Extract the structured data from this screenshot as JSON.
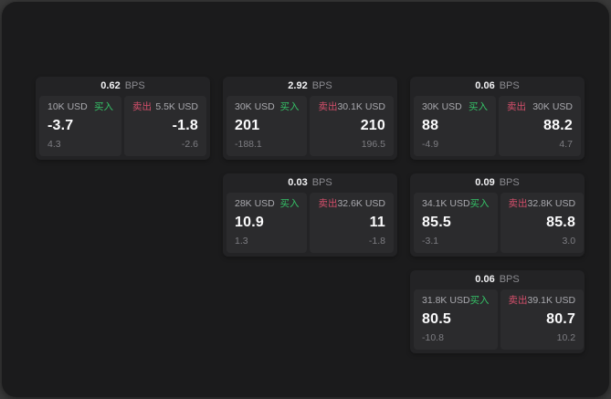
{
  "labels": {
    "bps_unit": "BPS",
    "buy": "买入",
    "sell": "卖出"
  },
  "colors": {
    "outer_background": "#3a3a3a",
    "surface_background": "#1b1b1c",
    "card_background": "#232325",
    "panel_background": "#2b2b2d",
    "buy_green": "#35c267",
    "sell_red": "#d44f6b",
    "primary_text": "#fbfbfc",
    "secondary_text": "#a9a9ae",
    "muted_text": "#7d7d82"
  },
  "cards": [
    {
      "row": 1,
      "col": 1,
      "bps": "0.62",
      "buy": {
        "notional": "10K USD",
        "price": "-3.7",
        "delta": "4.3"
      },
      "sell": {
        "notional": "5.5K USD",
        "price": "-1.8",
        "delta": "-2.6"
      }
    },
    {
      "row": 1,
      "col": 2,
      "bps": "2.92",
      "buy": {
        "notional": "30K USD",
        "price": "201",
        "delta": "-188.1"
      },
      "sell": {
        "notional": "30.1K USD",
        "price": "210",
        "delta": "196.5"
      }
    },
    {
      "row": 1,
      "col": 3,
      "bps": "0.06",
      "buy": {
        "notional": "30K USD",
        "price": "88",
        "delta": "-4.9"
      },
      "sell": {
        "notional": "30K USD",
        "price": "88.2",
        "delta": "4.7"
      }
    },
    {
      "row": 2,
      "col": 2,
      "bps": "0.03",
      "buy": {
        "notional": "28K USD",
        "price": "10.9",
        "delta": "1.3"
      },
      "sell": {
        "notional": "32.6K USD",
        "price": "11",
        "delta": "-1.8"
      }
    },
    {
      "row": 2,
      "col": 3,
      "bps": "0.09",
      "buy": {
        "notional": "34.1K USD",
        "price": "85.5",
        "delta": "-3.1"
      },
      "sell": {
        "notional": "32.8K USD",
        "price": "85.8",
        "delta": "3.0"
      }
    },
    {
      "row": 3,
      "col": 3,
      "bps": "0.06",
      "buy": {
        "notional": "31.8K USD",
        "price": "80.5",
        "delta": "-10.8"
      },
      "sell": {
        "notional": "39.1K USD",
        "price": "80.7",
        "delta": "10.2"
      }
    }
  ]
}
